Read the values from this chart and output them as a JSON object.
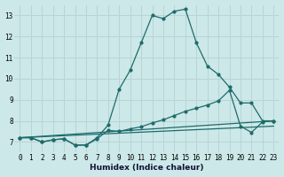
{
  "xlabel": "Humidex (Indice chaleur)",
  "background_color": "#cce8e8",
  "grid_color": "#b8d4d4",
  "line_color": "#1e6b6b",
  "xlim": [
    -0.5,
    23.5
  ],
  "ylim": [
    6.5,
    13.5
  ],
  "xticks": [
    0,
    1,
    2,
    3,
    4,
    5,
    6,
    7,
    8,
    9,
    10,
    11,
    12,
    13,
    14,
    15,
    16,
    17,
    18,
    19,
    20,
    21,
    22,
    23
  ],
  "yticks": [
    7,
    8,
    9,
    10,
    11,
    12,
    13
  ],
  "line1_x": [
    0,
    1,
    2,
    3,
    4,
    5,
    6,
    7,
    8,
    9,
    10,
    11,
    12,
    13,
    14,
    15,
    16,
    17,
    18,
    19,
    20,
    21,
    22,
    23
  ],
  "line1_y": [
    7.2,
    7.2,
    7.0,
    7.1,
    7.15,
    6.85,
    6.85,
    7.2,
    7.8,
    9.5,
    10.4,
    11.7,
    13.0,
    12.85,
    13.2,
    13.3,
    11.7,
    10.6,
    10.2,
    9.6,
    8.85,
    8.85,
    8.0,
    8.0
  ],
  "line2_x": [
    0,
    1,
    2,
    3,
    4,
    5,
    6,
    7,
    8,
    9,
    10,
    11,
    12,
    13,
    14,
    15,
    16,
    17,
    18,
    19,
    20,
    21,
    22,
    23
  ],
  "line2_y": [
    7.2,
    7.2,
    7.0,
    7.1,
    7.15,
    6.85,
    6.85,
    7.15,
    7.55,
    7.5,
    7.62,
    7.72,
    7.9,
    8.05,
    8.25,
    8.45,
    8.6,
    8.75,
    8.95,
    9.45,
    7.75,
    7.45,
    7.95,
    8.0
  ],
  "line3_x": [
    0,
    23
  ],
  "line3_y": [
    7.2,
    8.0
  ],
  "line4_x": [
    0,
    23
  ],
  "line4_y": [
    7.2,
    7.75
  ]
}
